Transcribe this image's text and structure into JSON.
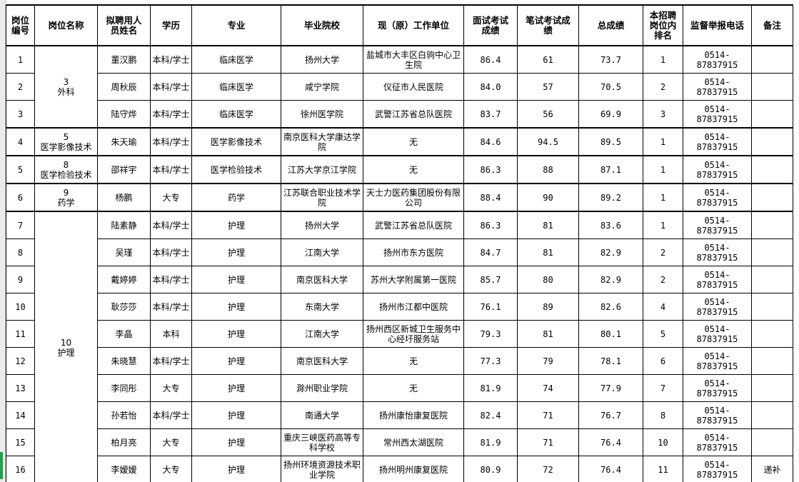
{
  "headers": [
    "岗位编号",
    "岗位名称",
    "拟聘用人员姓名",
    "学历",
    "专业",
    "毕业院校",
    "现（原）工作单位",
    "面试考试成绩",
    "笔试考试成绩",
    "总成绩",
    "本招聘岗位内排名",
    "监督举报电话",
    "备注"
  ],
  "groups": [
    {
      "label": "3\n外科",
      "rows": 3
    },
    {
      "label": "5\n医学影像技术",
      "rows": 1
    },
    {
      "label": "8\n医学检验技术",
      "rows": 1
    },
    {
      "label": "9\n药学",
      "rows": 1
    },
    {
      "label": "10\n护理",
      "rows": 10
    }
  ],
  "rows": [
    [
      "1",
      "董汉鹏",
      "本科/学士",
      "临床医学",
      "扬州大学",
      "盐城市大丰区白驹中心卫生院",
      "86.4",
      "61",
      "73.7",
      "1",
      "0514-87837915",
      ""
    ],
    [
      "2",
      "周秋辰",
      "本科/学士",
      "临床医学",
      "咸宁学院",
      "仪征市人民医院",
      "84.0",
      "57",
      "70.5",
      "2",
      "0514-87837915",
      ""
    ],
    [
      "3",
      "陆守烨",
      "本科/学士",
      "临床医学",
      "徐州医学院",
      "武警江苏省总队医院",
      "83.7",
      "56",
      "69.9",
      "3",
      "0514-87837915",
      ""
    ],
    [
      "4",
      "朱天瑜",
      "本科/学士",
      "医学影像技术",
      "南京医科大学康达学院",
      "无",
      "84.6",
      "94.5",
      "89.5",
      "1",
      "0514-87837915",
      ""
    ],
    [
      "5",
      "邵祥宇",
      "本科/学士",
      "医学检验技术",
      "江苏大学京江学院",
      "无",
      "86.3",
      "88",
      "87.1",
      "1",
      "0514-87837915",
      ""
    ],
    [
      "6",
      "杨鹏",
      "大专",
      "药学",
      "江苏联合职业技术学院",
      "天士力医药集团股份有限公司",
      "88.4",
      "90",
      "89.2",
      "1",
      "0514-87837915",
      ""
    ],
    [
      "7",
      "陆素静",
      "本科/学士",
      "护理",
      "扬州大学",
      "武警江苏省总队医院",
      "86.3",
      "81",
      "83.6",
      "1",
      "0514-87837915",
      ""
    ],
    [
      "8",
      "吴瑾",
      "本科/学士",
      "护理",
      "江南大学",
      "扬州市东方医院",
      "84.7",
      "81",
      "82.9",
      "2",
      "0514-87837915",
      ""
    ],
    [
      "9",
      "戴婷婷",
      "本科/学士",
      "护理",
      "南京医科大学",
      "苏州大学附属第一医院",
      "85.7",
      "80",
      "82.9",
      "2",
      "0514-87837915",
      ""
    ],
    [
      "10",
      "耿莎莎",
      "本科/学士",
      "护理",
      "东南大学",
      "扬州市江都中医院",
      "76.1",
      "89",
      "82.6",
      "4",
      "0514-87837915",
      ""
    ],
    [
      "11",
      "李晶",
      "本科",
      "护理",
      "江南大学",
      "扬州西区新城卫生服务中心经圩服务站",
      "79.3",
      "81",
      "80.1",
      "5",
      "0514-87837915",
      ""
    ],
    [
      "12",
      "朱晓慧",
      "本科/学士",
      "护理",
      "南京医科大学",
      "无",
      "77.3",
      "79",
      "78.1",
      "6",
      "0514-87837915",
      ""
    ],
    [
      "13",
      "李同彤",
      "大专",
      "护理",
      "滁州职业学院",
      "无",
      "81.9",
      "74",
      "77.9",
      "7",
      "0514-87837915",
      ""
    ],
    [
      "14",
      "孙若怡",
      "本科/学士",
      "护理",
      "南通大学",
      "扬州康怡康复医院",
      "82.4",
      "71",
      "76.7",
      "8",
      "0514-87837915",
      ""
    ],
    [
      "15",
      "柏月亮",
      "大专",
      "护理",
      "重庆三峡医药高等专科学校",
      "常州西太湖医院",
      "81.9",
      "71",
      "76.4",
      "10",
      "0514-87837915",
      ""
    ],
    [
      "16",
      "李嫒嫒",
      "大专",
      "护理",
      "扬州环境资源技术职业学院",
      "扬州明州康复医院",
      "80.9",
      "72",
      "76.4",
      "11",
      "0514-87837915",
      "递补"
    ]
  ]
}
